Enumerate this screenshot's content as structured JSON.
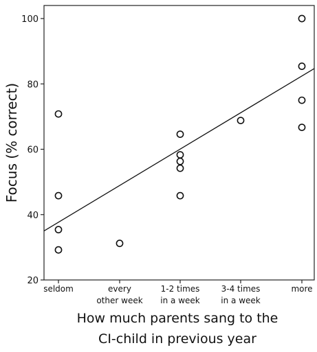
{
  "chart_data": {
    "type": "scatter",
    "title": "",
    "ylabel": "Focus (% correct)",
    "xlabel_lines": [
      "How much parents sang to the",
      "CI-child in previous year"
    ],
    "ylim": [
      20,
      104
    ],
    "y_ticks": [
      20,
      40,
      60,
      80,
      100
    ],
    "categories": [
      [
        "seldom"
      ],
      [
        "every",
        "other week"
      ],
      [
        "1-2 times",
        "in a week"
      ],
      [
        "3-4 times",
        "in a week"
      ],
      [
        "more"
      ]
    ],
    "points": [
      {
        "x": 0,
        "y": 70.8
      },
      {
        "x": 0,
        "y": 45.8
      },
      {
        "x": 0,
        "y": 35.4
      },
      {
        "x": 0,
        "y": 29.2
      },
      {
        "x": 1,
        "y": 31.2
      },
      {
        "x": 2,
        "y": 64.6
      },
      {
        "x": 2,
        "y": 58.3
      },
      {
        "x": 2,
        "y": 56.3
      },
      {
        "x": 2,
        "y": 54.2
      },
      {
        "x": 2,
        "y": 45.8
      },
      {
        "x": 3,
        "y": 68.8
      },
      {
        "x": 4,
        "y": 100
      },
      {
        "x": 4,
        "y": 85.4
      },
      {
        "x": 4,
        "y": 75
      },
      {
        "x": 4,
        "y": 66.7
      }
    ],
    "fit_line": {
      "y_at_x_min": 35,
      "y_at_x_max": 84.7
    },
    "grid": false,
    "legend": "none"
  }
}
